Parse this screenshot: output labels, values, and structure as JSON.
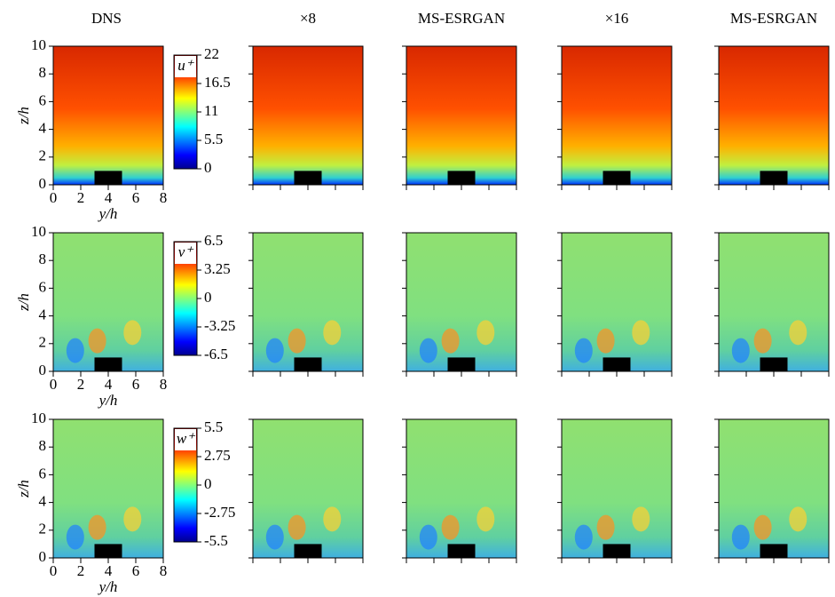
{
  "columns": [
    "DNS",
    "×8",
    "MS-ESRGAN",
    "×16",
    "MS-ESRGAN"
  ],
  "x_label": "y/h",
  "y_label": "z/h",
  "xlim": [
    0,
    8
  ],
  "xticks": [
    0,
    2,
    4,
    6,
    8
  ],
  "ylim": [
    0,
    10
  ],
  "yticks": [
    0,
    2,
    4,
    6,
    8,
    10
  ],
  "rows": [
    {
      "variable": "u⁺",
      "colorbar": {
        "lim": [
          0,
          22
        ],
        "ticks": [
          0,
          5.5,
          11,
          16.5,
          22
        ]
      }
    },
    {
      "variable": "v⁺",
      "colorbar": {
        "lim": [
          -6.5,
          6.5
        ],
        "ticks": [
          -6.5,
          -3.25,
          0,
          3.25,
          6.5
        ]
      }
    },
    {
      "variable": "w⁺",
      "colorbar": {
        "lim": [
          -5.5,
          5.5
        ],
        "ticks": [
          -5.5,
          -2.75,
          0,
          2.75,
          5.5
        ]
      }
    }
  ]
}
